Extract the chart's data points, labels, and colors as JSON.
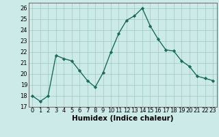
{
  "x": [
    0,
    1,
    2,
    3,
    4,
    5,
    6,
    7,
    8,
    9,
    10,
    11,
    12,
    13,
    14,
    15,
    16,
    17,
    18,
    19,
    20,
    21,
    22,
    23
  ],
  "y": [
    18.0,
    17.5,
    18.0,
    21.7,
    21.4,
    21.2,
    20.3,
    19.4,
    18.8,
    20.1,
    22.0,
    23.7,
    24.9,
    25.3,
    26.0,
    24.4,
    23.2,
    22.2,
    22.1,
    21.2,
    20.7,
    19.8,
    19.6,
    19.4
  ],
  "line_color": "#1a6b5a",
  "marker": "D",
  "marker_size": 2.2,
  "line_width": 1.0,
  "bg_color": "#cceae7",
  "grid_color": "#a0c8c4",
  "xlabel": "Humidex (Indice chaleur)",
  "xlim": [
    -0.5,
    23.5
  ],
  "ylim": [
    17,
    26.5
  ],
  "yticks": [
    17,
    18,
    19,
    20,
    21,
    22,
    23,
    24,
    25,
    26
  ],
  "xticks": [
    0,
    1,
    2,
    3,
    4,
    5,
    6,
    7,
    8,
    9,
    10,
    11,
    12,
    13,
    14,
    15,
    16,
    17,
    18,
    19,
    20,
    21,
    22,
    23
  ],
  "tick_label_fontsize": 6.0,
  "xlabel_fontsize": 7.5
}
